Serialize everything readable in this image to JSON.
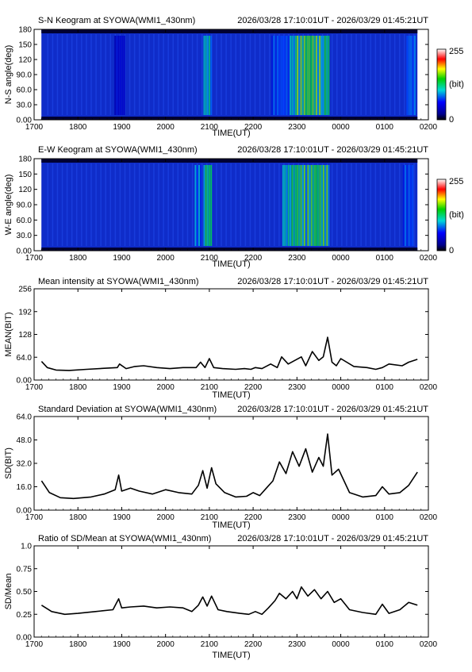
{
  "chart_data": [
    {
      "type": "heatmap",
      "title": "S-N Keogram at SYOWA(WMI1_430nm)",
      "time_range": "2026/03/28 17:10:01UT - 2026/03/29 01:45:21UT",
      "xlabel": "TIME(UT)",
      "ylabel": "N-S angle(deg)",
      "x_ticks": [
        "1700",
        "1800",
        "1900",
        "2000",
        "2100",
        "2200",
        "2300",
        "0000",
        "0100",
        "0200"
      ],
      "y_ticks": [
        "0.00",
        "30.0",
        "60.0",
        "90.0",
        "120",
        "150",
        "180"
      ],
      "y_range": [
        0,
        180
      ],
      "colorbar": {
        "min_label": "0",
        "max_label": "255",
        "unit": "(bit)",
        "range": [
          0,
          255
        ]
      },
      "bright_bands_ut": [
        {
          "start": "1850",
          "end": "1905",
          "peak": 60
        },
        {
          "start": "2052",
          "end": "2104",
          "peak": 150
        },
        {
          "start": "2225",
          "end": "2250",
          "peak": 110
        },
        {
          "start": "2250",
          "end": "2300",
          "peak": 150
        },
        {
          "start": "2300",
          "end": "2335",
          "peak": 190
        },
        {
          "start": "2335",
          "end": "2345",
          "peak": 170
        },
        {
          "start": "0130",
          "end": "0143",
          "peak": 120
        }
      ]
    },
    {
      "type": "heatmap",
      "title": "E-W Keogram at SYOWA(WMI1_430nm)",
      "time_range": "2026/03/28 17:10:01UT - 2026/03/29 01:45:21UT",
      "xlabel": "TIME(UT)",
      "ylabel": "W-E angle(deg)",
      "x_ticks": [
        "1700",
        "1800",
        "1900",
        "2000",
        "2100",
        "2200",
        "2300",
        "0000",
        "0100",
        "0200"
      ],
      "y_ticks": [
        "0.00",
        "30.0",
        "60.0",
        "90.0",
        "120",
        "150",
        "180"
      ],
      "y_range": [
        0,
        180
      ],
      "colorbar": {
        "min_label": "0",
        "max_label": "255",
        "unit": "(bit)",
        "range": [
          0,
          255
        ]
      },
      "bright_bands_ut": [
        {
          "start": "2040",
          "end": "2050",
          "peak": 130
        },
        {
          "start": "2052",
          "end": "2104",
          "peak": 170
        },
        {
          "start": "2240",
          "end": "2250",
          "peak": 150
        },
        {
          "start": "2250",
          "end": "2300",
          "peak": 170
        },
        {
          "start": "2300",
          "end": "2345",
          "peak": 180
        },
        {
          "start": "0125",
          "end": "0140",
          "peak": 110
        }
      ]
    },
    {
      "type": "line",
      "title": "Mean intensity at SYOWA(WMI1_430nm)",
      "time_range": "2026/03/28 17:10:01UT - 2026/03/29 01:45:21UT",
      "xlabel": "TIME(UT)",
      "ylabel": "MEAN(BIT)",
      "x_ticks": [
        "1700",
        "1800",
        "1900",
        "2000",
        "2100",
        "2200",
        "2300",
        "0000",
        "0100",
        "0200"
      ],
      "y_ticks": [
        "0.00",
        "64.0",
        "128",
        "192",
        "256"
      ],
      "ylim": [
        0,
        256
      ],
      "series": [
        {
          "x": [
            17.17,
            17.3,
            17.5,
            17.8,
            18.2,
            18.6,
            18.9,
            18.95,
            19.1,
            19.3,
            19.5,
            19.8,
            20.1,
            20.4,
            20.7,
            20.8,
            20.9,
            21.0,
            21.1,
            21.3,
            21.6,
            21.8,
            21.95,
            22.05,
            22.2,
            22.4,
            22.55,
            22.65,
            22.8,
            22.95,
            23.1,
            23.2,
            23.35,
            23.5,
            23.6,
            23.7,
            23.8,
            23.9,
            24.0,
            24.3,
            24.6,
            24.8,
            24.95,
            25.1,
            25.4,
            25.55,
            25.75
          ],
          "y": [
            52,
            35,
            28,
            27,
            30,
            33,
            35,
            45,
            32,
            38,
            40,
            35,
            32,
            35,
            35,
            50,
            35,
            60,
            35,
            32,
            30,
            32,
            30,
            35,
            32,
            45,
            35,
            65,
            45,
            55,
            65,
            40,
            80,
            55,
            65,
            120,
            50,
            40,
            60,
            38,
            35,
            30,
            35,
            45,
            40,
            50,
            58
          ]
        }
      ]
    },
    {
      "type": "line",
      "title": "Standard Deviation at SYOWA(WMI1_430nm)",
      "time_range": "2026/03/28 17:10:01UT - 2026/03/29 01:45:21UT",
      "xlabel": "TIME(UT)",
      "ylabel": "SD(BIT)",
      "x_ticks": [
        "1700",
        "1800",
        "1900",
        "2000",
        "2100",
        "2200",
        "2300",
        "0000",
        "0100",
        "0200"
      ],
      "y_ticks": [
        "0.00",
        "16.0",
        "32.0",
        "48.0",
        "64.0"
      ],
      "ylim": [
        0,
        64
      ],
      "series": [
        {
          "x": [
            17.17,
            17.35,
            17.6,
            17.9,
            18.3,
            18.6,
            18.85,
            18.93,
            19.0,
            19.2,
            19.4,
            19.7,
            20.0,
            20.3,
            20.6,
            20.75,
            20.85,
            20.95,
            21.05,
            21.15,
            21.35,
            21.6,
            21.85,
            22.0,
            22.15,
            22.3,
            22.45,
            22.6,
            22.75,
            22.9,
            23.05,
            23.2,
            23.35,
            23.5,
            23.6,
            23.7,
            23.8,
            23.95,
            24.2,
            24.5,
            24.8,
            24.95,
            25.1,
            25.35,
            25.55,
            25.75
          ],
          "y": [
            20,
            12,
            8.5,
            8,
            9,
            11,
            14,
            24,
            13,
            15,
            13,
            11,
            14,
            12,
            11,
            17,
            27,
            15,
            29,
            18,
            12,
            9,
            9.5,
            12,
            10,
            15,
            20,
            33,
            25,
            40,
            30,
            42,
            26,
            36,
            30,
            52,
            24,
            28,
            12,
            9,
            10,
            16,
            11,
            12,
            17,
            26
          ]
        }
      ]
    },
    {
      "type": "line",
      "title": "Ratio of SD/Mean at SYOWA(WMI1_430nm)",
      "time_range": "2026/03/28 17:10:01UT - 2026/03/29 01:45:21UT",
      "xlabel": "TIME(UT)",
      "ylabel": "SD/Mean",
      "x_ticks": [
        "1700",
        "1800",
        "1900",
        "2000",
        "2100",
        "2200",
        "2300",
        "0000",
        "0100",
        "0200"
      ],
      "y_ticks": [
        "0.00",
        "0.25",
        "0.50",
        "0.75",
        "1.0"
      ],
      "ylim": [
        0,
        1
      ],
      "series": [
        {
          "x": [
            17.17,
            17.4,
            17.7,
            18.0,
            18.4,
            18.8,
            18.93,
            19.0,
            19.2,
            19.5,
            19.8,
            20.1,
            20.4,
            20.6,
            20.75,
            20.85,
            20.95,
            21.05,
            21.2,
            21.4,
            21.7,
            21.9,
            22.05,
            22.2,
            22.35,
            22.5,
            22.6,
            22.75,
            22.9,
            23.0,
            23.1,
            23.25,
            23.4,
            23.55,
            23.7,
            23.85,
            24.0,
            24.2,
            24.5,
            24.8,
            24.95,
            25.1,
            25.35,
            25.55,
            25.75
          ],
          "y": [
            0.35,
            0.28,
            0.25,
            0.26,
            0.28,
            0.3,
            0.42,
            0.32,
            0.33,
            0.34,
            0.32,
            0.33,
            0.32,
            0.28,
            0.35,
            0.44,
            0.34,
            0.45,
            0.3,
            0.28,
            0.26,
            0.25,
            0.28,
            0.25,
            0.32,
            0.4,
            0.48,
            0.42,
            0.5,
            0.42,
            0.55,
            0.45,
            0.52,
            0.42,
            0.5,
            0.38,
            0.42,
            0.3,
            0.27,
            0.25,
            0.36,
            0.26,
            0.3,
            0.38,
            0.35
          ]
        }
      ]
    }
  ]
}
